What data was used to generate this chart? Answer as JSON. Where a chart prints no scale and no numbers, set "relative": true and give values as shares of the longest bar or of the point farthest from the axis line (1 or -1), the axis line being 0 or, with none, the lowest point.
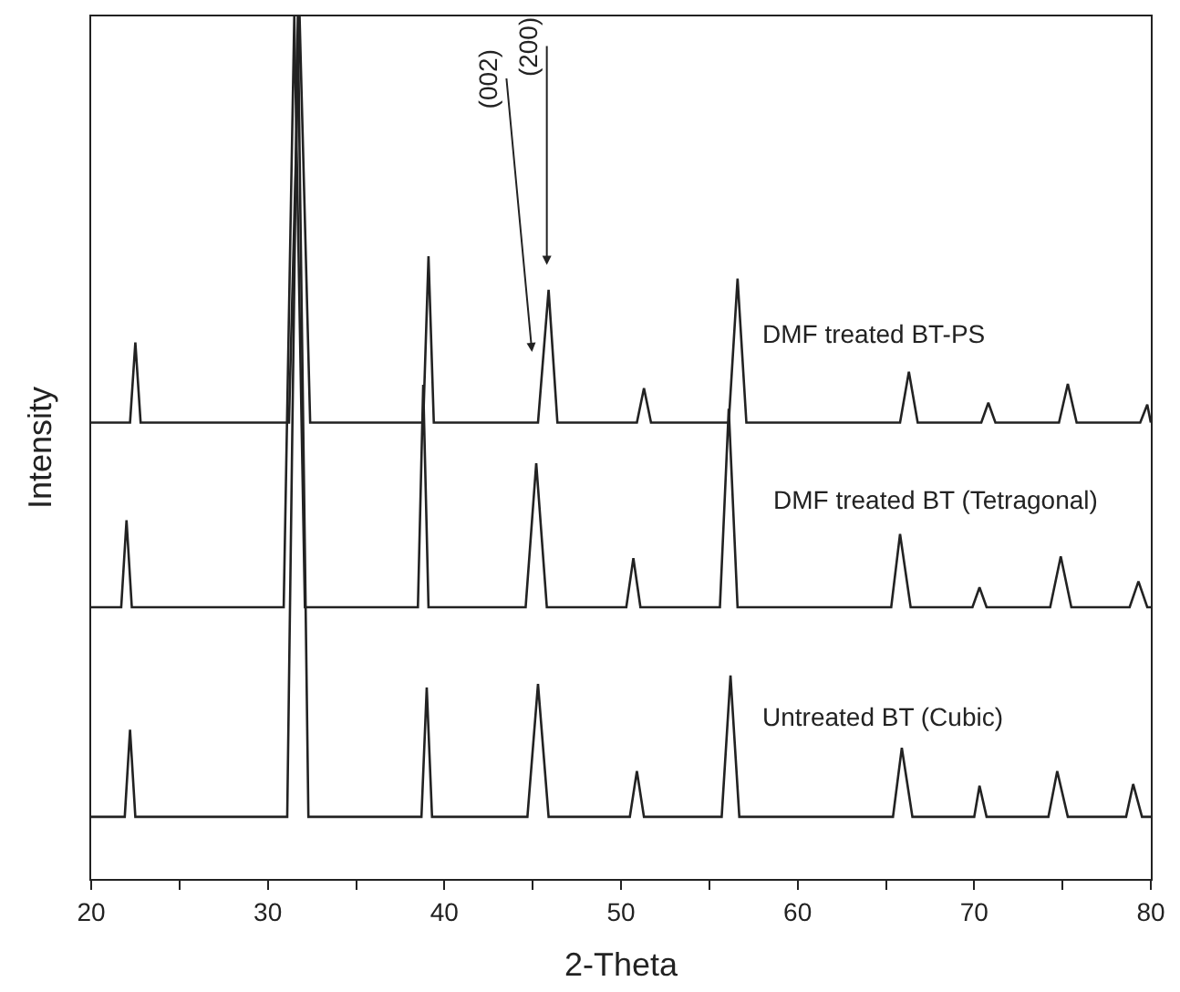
{
  "chart_data": {
    "type": "line",
    "relative": true,
    "xlabel": "2-Theta",
    "ylabel": "Intensity",
    "xlim": [
      20,
      80
    ],
    "xticks": [
      20,
      {
        "value": 25,
        "label": null
      },
      30,
      {
        "value": 35,
        "label": null
      },
      40,
      {
        "value": 45,
        "label": null
      },
      50,
      {
        "value": 55,
        "label": null
      },
      60,
      {
        "value": 65,
        "label": null
      },
      70,
      {
        "value": 75,
        "label": null
      },
      80
    ],
    "legend": false,
    "marker": "none",
    "line_style": "solid",
    "series": [
      {
        "name": "Untreated BT (Cubic)",
        "color": "#222222",
        "x": [
          20,
          21.9,
          22.2,
          22.5,
          31.1,
          31.7,
          32.3,
          38.7,
          39.0,
          39.3,
          44.7,
          45.3,
          45.9,
          50.5,
          50.9,
          51.3,
          55.7,
          56.2,
          56.7,
          65.4,
          65.9,
          66.5,
          70.0,
          70.3,
          70.7,
          74.2,
          74.7,
          75.3,
          78.6,
          79.0,
          79.5,
          80
        ],
        "values": [
          0.072,
          0.072,
          0.173,
          0.072,
          0.072,
          1,
          0.072,
          0.072,
          0.222,
          0.072,
          0.072,
          0.226,
          0.072,
          0.072,
          0.125,
          0.072,
          0.072,
          0.236,
          0.072,
          0.072,
          0.152,
          0.072,
          0.072,
          0.108,
          0.072,
          0.072,
          0.125,
          0.072,
          0.072,
          0.11,
          0.072,
          0.072
        ]
      },
      {
        "name": "DMF treated BT (Tetragonal)",
        "color": "#222222",
        "x": [
          20,
          21.7,
          22.0,
          22.3,
          30.9,
          31.5,
          32.1,
          38.5,
          38.8,
          39.1,
          44.6,
          45.2,
          45.8,
          50.3,
          50.7,
          51.1,
          55.6,
          56.1,
          56.6,
          65.3,
          65.8,
          66.4,
          69.9,
          70.3,
          70.7,
          74.3,
          74.9,
          75.5,
          78.8,
          79.3,
          79.8,
          80
        ],
        "values": [
          0.315,
          0.315,
          0.416,
          0.315,
          0.315,
          1,
          0.315,
          0.315,
          0.573,
          0.315,
          0.315,
          0.482,
          0.315,
          0.315,
          0.372,
          0.315,
          0.315,
          0.545,
          0.315,
          0.315,
          0.4,
          0.315,
          0.315,
          0.338,
          0.315,
          0.315,
          0.374,
          0.315,
          0.315,
          0.345,
          0.315,
          0.315
        ]
      },
      {
        "name": "DMF treated BT-PS",
        "color": "#222222",
        "x": [
          20,
          22.2,
          22.5,
          22.8,
          31.2,
          31.8,
          32.4,
          38.8,
          39.1,
          39.4,
          45.3,
          45.9,
          46.4,
          50.9,
          51.3,
          51.7,
          56.1,
          56.6,
          57.1,
          65.8,
          66.3,
          66.8,
          70.4,
          70.8,
          71.2,
          74.8,
          75.3,
          75.8,
          79.4,
          79.8,
          80
        ],
        "values": [
          0.529,
          0.529,
          0.622,
          0.529,
          0.529,
          1,
          0.529,
          0.529,
          0.722,
          0.529,
          0.529,
          0.683,
          0.529,
          0.529,
          0.569,
          0.529,
          0.529,
          0.696,
          0.529,
          0.529,
          0.588,
          0.529,
          0.529,
          0.552,
          0.529,
          0.529,
          0.574,
          0.529,
          0.529,
          0.55,
          0.529
        ]
      }
    ],
    "annotations": [
      "(002)",
      "(200)"
    ]
  }
}
